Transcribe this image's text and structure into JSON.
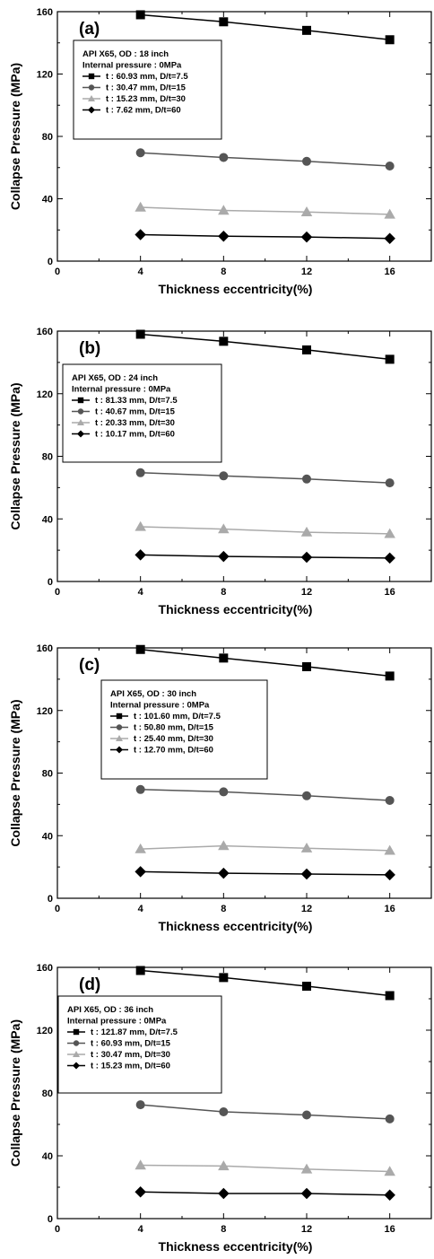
{
  "chart_data": [
    {
      "type": "line",
      "panel_label": "(a)",
      "xlabel": "Thickness eccentricity(%)",
      "ylabel": "Collapse Pressure (MPa)",
      "xlim": [
        0,
        18
      ],
      "ylim": [
        0,
        160
      ],
      "xticks": [
        0,
        4,
        8,
        12,
        16
      ],
      "yticks": [
        0,
        40,
        80,
        120,
        160
      ],
      "grid": false,
      "legend_position": "upper-left",
      "legend_title": [
        "API X65, OD : 18 inch",
        "Internal pressure : 0MPa"
      ],
      "x": [
        4,
        8,
        12,
        16
      ],
      "series": [
        {
          "name": "t : 60.93 mm, D/t=7.5",
          "marker": "square",
          "color": "#000000",
          "values": [
            158,
            153.5,
            148,
            142
          ]
        },
        {
          "name": "t : 30.47 mm, D/t=15",
          "marker": "circle",
          "color": "#555555",
          "values": [
            69.5,
            66.5,
            64,
            61
          ]
        },
        {
          "name": "t : 15.23 mm, D/t=30",
          "marker": "triangle",
          "color": "#aaaaaa",
          "values": [
            34.5,
            32.5,
            31.5,
            30
          ]
        },
        {
          "name": "t : 7.62 mm, D/t=60",
          "marker": "diamond",
          "color": "#000000",
          "values": [
            17,
            16,
            15.5,
            14.5
          ]
        }
      ]
    },
    {
      "type": "line",
      "panel_label": "(b)",
      "xlabel": "Thickness eccentricity(%)",
      "ylabel": "Collapse Pressure (MPa)",
      "xlim": [
        0,
        18
      ],
      "ylim": [
        0,
        160
      ],
      "xticks": [
        0,
        4,
        8,
        12,
        16
      ],
      "yticks": [
        0,
        40,
        80,
        120,
        160
      ],
      "grid": false,
      "legend_position": "upper-left",
      "legend_title": [
        "API X65, OD : 24 inch",
        "Internal pressure : 0MPa"
      ],
      "x": [
        4,
        8,
        12,
        16
      ],
      "series": [
        {
          "name": "t : 81.33 mm, D/t=7.5",
          "marker": "square",
          "color": "#000000",
          "values": [
            158,
            153.5,
            148,
            142
          ]
        },
        {
          "name": "t : 40.67 mm, D/t=15",
          "marker": "circle",
          "color": "#555555",
          "values": [
            69.5,
            67.5,
            65.5,
            63
          ]
        },
        {
          "name": "t : 20.33 mm, D/t=30",
          "marker": "triangle",
          "color": "#aaaaaa",
          "values": [
            35,
            33.5,
            31.5,
            30.5
          ]
        },
        {
          "name": "t : 10.17 mm, D/t=60",
          "marker": "diamond",
          "color": "#000000",
          "values": [
            17,
            16,
            15.5,
            15
          ]
        }
      ]
    },
    {
      "type": "line",
      "panel_label": "(c)",
      "xlabel": "Thickness eccentricity(%)",
      "ylabel": "Collapse Pressure (MPa)",
      "xlim": [
        0,
        18
      ],
      "ylim": [
        0,
        160
      ],
      "xticks": [
        0,
        4,
        8,
        12,
        16
      ],
      "yticks": [
        0,
        40,
        80,
        120,
        160
      ],
      "grid": false,
      "legend_position": "upper-center",
      "legend_title": [
        "API X65, OD : 30 inch",
        "Internal pressure : 0MPa"
      ],
      "x": [
        4,
        8,
        12,
        16
      ],
      "series": [
        {
          "name": "t : 101.60 mm, D/t=7.5",
          "marker": "square",
          "color": "#000000",
          "values": [
            159,
            153.5,
            148,
            142
          ]
        },
        {
          "name": "t : 50.80 mm, D/t=15",
          "marker": "circle",
          "color": "#555555",
          "values": [
            69.5,
            68,
            65.5,
            62.5
          ]
        },
        {
          "name": "t : 25.40 mm, D/t=30",
          "marker": "triangle",
          "color": "#aaaaaa",
          "values": [
            31.5,
            33.5,
            32,
            30.5
          ]
        },
        {
          "name": "t : 12.70 mm, D/t=60",
          "marker": "diamond",
          "color": "#000000",
          "values": [
            17,
            16,
            15.5,
            15
          ]
        }
      ]
    },
    {
      "type": "line",
      "panel_label": "(d)",
      "xlabel": "Thickness eccentricity(%)",
      "ylabel": "Collapse Pressure (MPa)",
      "xlim": [
        0,
        18
      ],
      "ylim": [
        0,
        160
      ],
      "xticks": [
        0,
        4,
        8,
        12,
        16
      ],
      "yticks": [
        0,
        40,
        80,
        120,
        160
      ],
      "grid": false,
      "legend_position": "upper-left",
      "legend_title": [
        "API X65, OD : 36 inch",
        "Internal pressure : 0MPa"
      ],
      "x": [
        4,
        8,
        12,
        16
      ],
      "series": [
        {
          "name": "t : 121.87 mm, D/t=7.5",
          "marker": "square",
          "color": "#000000",
          "values": [
            158,
            153.5,
            148,
            142
          ]
        },
        {
          "name": "t : 60.93 mm, D/t=15",
          "marker": "circle",
          "color": "#555555",
          "values": [
            72.5,
            68,
            66,
            63.5
          ]
        },
        {
          "name": "t : 30.47 mm, D/t=30",
          "marker": "triangle",
          "color": "#aaaaaa",
          "values": [
            34,
            33.5,
            31.5,
            30
          ]
        },
        {
          "name": "t : 15.23 mm, D/t=60",
          "marker": "diamond",
          "color": "#000000",
          "values": [
            17,
            16,
            16,
            15
          ]
        }
      ]
    }
  ]
}
